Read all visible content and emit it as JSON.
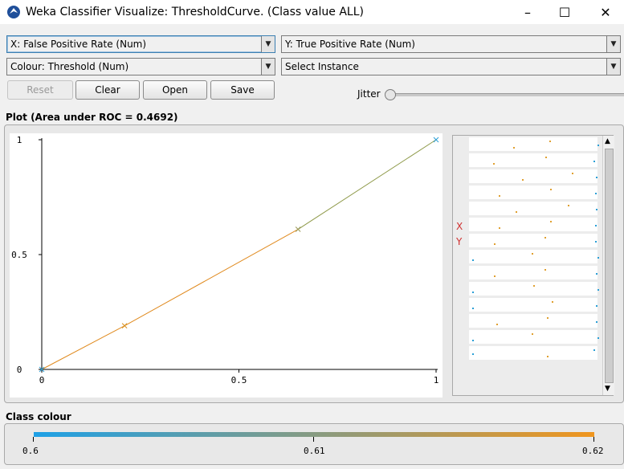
{
  "window": {
    "title": "Weka Classifier Visualize: ThresholdCurve. (Class value ALL)",
    "minimize_glyph": "–",
    "maximize_glyph": "☐",
    "close_glyph": "✕"
  },
  "controls": {
    "x_axis": "X: False Positive Rate (Num)",
    "y_axis": "Y: True Positive Rate (Num)",
    "colour": "Colour: Threshold (Num)",
    "instance": "Select Instance",
    "reset_label": "Reset",
    "clear_label": "Clear",
    "open_label": "Open",
    "save_label": "Save",
    "jitter_label": "Jitter",
    "jitter_value": 0
  },
  "plot": {
    "label": "Plot (Area under ROC = 0.4692)",
    "strip_x_label": "X",
    "strip_y_label": "Y"
  },
  "chart_data": {
    "type": "line",
    "title": "",
    "xlabel": "",
    "ylabel": "",
    "xlim": [
      0,
      1
    ],
    "ylim": [
      0,
      1
    ],
    "x_ticks": [
      "0",
      "0.5",
      "1"
    ],
    "y_ticks": [
      "0",
      "0.5",
      "1"
    ],
    "series": [
      {
        "x": [
          0,
          0.21,
          0.65,
          1.0
        ],
        "y": [
          0,
          0.19,
          0.61,
          1.0
        ],
        "colors": [
          "#2a9fd6",
          "#d8901f",
          "#9a9a5a",
          "#2a9fd6"
        ]
      }
    ]
  },
  "legend": {
    "label": "Class colour",
    "min_label": "0.6",
    "mid_label": "0.61",
    "max_label": "0.62",
    "low_color": "#1ea0e6",
    "high_color": "#f0961e"
  },
  "colors": {
    "line": "#e08a1e",
    "blue": "#2a9fd6",
    "orange": "#e0a030"
  },
  "icons": {
    "app": "weka-bird-icon",
    "dropdown": "chevron-down-icon",
    "scroll_up": "scroll-up-arrow-icon",
    "scroll_down": "scroll-down-arrow-icon"
  }
}
